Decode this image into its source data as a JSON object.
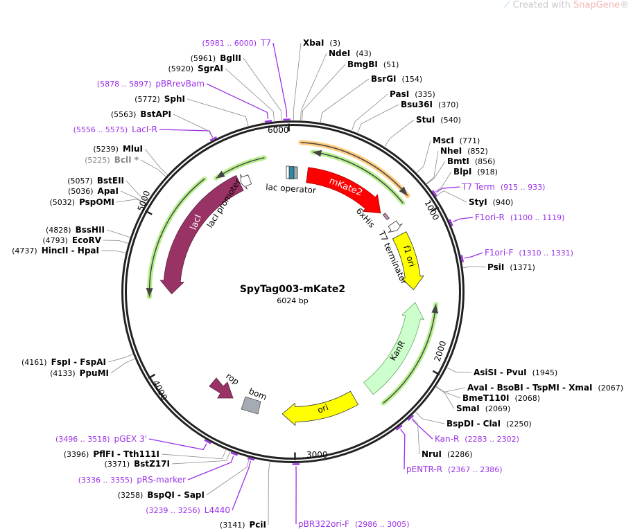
{
  "watermark": {
    "prefix": "Created with ",
    "brand": "SnapGene",
    "suffix": "®"
  },
  "plasmid": {
    "name": "SpyTag003-mKate2",
    "length_label": "6024 bp",
    "length_bp": 6024
  },
  "colors": {
    "enzyme": "#000000",
    "primer": "#9b30e8",
    "ring": "#222222",
    "nonunique": "#888888"
  },
  "ticks": [
    "1000",
    "2000",
    "3000",
    "4000",
    "5000",
    "6000"
  ],
  "features": {
    "mkate2": {
      "label": "mKate2",
      "color": "#ff0000"
    },
    "his": {
      "label": "6xHis",
      "color": "#c890b8"
    },
    "t7term": {
      "label": "T7 terminator",
      "color": "#ffffff"
    },
    "f1ori": {
      "label": "f1 ori",
      "color": "#ffff00"
    },
    "kanr": {
      "label": "KanR",
      "color": "#ccffcc"
    },
    "ori": {
      "label": "ori",
      "color": "#ffff00"
    },
    "rop": {
      "label": "rop",
      "color": "#993366"
    },
    "bom": {
      "label": "bom",
      "color": "#a6aab2"
    },
    "laci": {
      "label": "lacI",
      "color": "#993366"
    },
    "lacprom": {
      "label": "lacI promoter",
      "color": "#ffffff"
    },
    "lacop": {
      "label": "lac operator",
      "color": "#2b8aa6"
    }
  },
  "sites": [
    {
      "name": "XbaI",
      "pos": "(3)",
      "bp": 3,
      "kind": "enzyme",
      "side": "right"
    },
    {
      "name": "NdeI",
      "pos": "(43)",
      "bp": 43,
      "kind": "enzyme",
      "side": "right"
    },
    {
      "name": "BmgBI",
      "pos": "(51)",
      "bp": 51,
      "kind": "enzyme",
      "side": "right"
    },
    {
      "name": "BsrGI",
      "pos": "(154)",
      "bp": 154,
      "kind": "enzyme",
      "side": "right"
    },
    {
      "name": "PasI",
      "pos": "(335)",
      "bp": 335,
      "kind": "enzyme",
      "side": "right"
    },
    {
      "name": "Bsu36I",
      "pos": "(370)",
      "bp": 370,
      "kind": "enzyme",
      "side": "right"
    },
    {
      "name": "StuI",
      "pos": "(540)",
      "bp": 540,
      "kind": "enzyme",
      "side": "right"
    },
    {
      "name": "MscI",
      "pos": "(771)",
      "bp": 771,
      "kind": "enzyme",
      "side": "right"
    },
    {
      "name": "NheI",
      "pos": "(852)",
      "bp": 852,
      "kind": "enzyme",
      "side": "right"
    },
    {
      "name": "BmtI",
      "pos": "(856)",
      "bp": 856,
      "kind": "enzyme",
      "side": "right"
    },
    {
      "name": "BlpI",
      "pos": "(918)",
      "bp": 918,
      "kind": "enzyme",
      "side": "right"
    },
    {
      "name": "T7 Term",
      "pos": "(915 .. 933)",
      "bp": 924,
      "kind": "primer",
      "side": "right"
    },
    {
      "name": "StyI",
      "pos": "(940)",
      "bp": 940,
      "kind": "enzyme",
      "side": "right"
    },
    {
      "name": "F1ori-R",
      "pos": "(1100 .. 1119)",
      "bp": 1110,
      "kind": "primer",
      "side": "right"
    },
    {
      "name": "F1ori-F",
      "pos": "(1310 .. 1331)",
      "bp": 1320,
      "kind": "primer",
      "side": "right"
    },
    {
      "name": "PsiI",
      "pos": "(1371)",
      "bp": 1371,
      "kind": "enzyme",
      "side": "right"
    },
    {
      "name": "AsiSI - PvuI",
      "pos": "(1945)",
      "bp": 1945,
      "kind": "enzyme",
      "side": "right"
    },
    {
      "name": "AvaI - BsoBI - TspMI - XmaI",
      "pos": "(2067)",
      "bp": 2067,
      "kind": "enzyme",
      "side": "right"
    },
    {
      "name": "BmeT110I",
      "pos": "(2068)",
      "bp": 2068,
      "kind": "enzyme",
      "side": "right"
    },
    {
      "name": "SmaI",
      "pos": "(2069)",
      "bp": 2069,
      "kind": "enzyme",
      "side": "right"
    },
    {
      "name": "BspDI - ClaI",
      "pos": "(2250)",
      "bp": 2250,
      "kind": "enzyme",
      "side": "right"
    },
    {
      "name": "Kan-R",
      "pos": "(2283 .. 2302)",
      "bp": 2292,
      "kind": "primer",
      "side": "right"
    },
    {
      "name": "NruI",
      "pos": "(2286)",
      "bp": 2286,
      "kind": "enzyme",
      "side": "right"
    },
    {
      "name": "pENTR-R",
      "pos": "(2367 .. 2386)",
      "bp": 2376,
      "kind": "primer",
      "side": "right"
    },
    {
      "name": "pBR322ori-F",
      "pos": "(2986 .. 3005)",
      "bp": 2995,
      "kind": "primer",
      "side": "right"
    },
    {
      "name": "PciI",
      "pos": "(3141)",
      "bp": 3141,
      "kind": "enzyme",
      "side": "left"
    },
    {
      "name": "L4440",
      "pos": "(3239 .. 3256)",
      "bp": 3247,
      "kind": "primer",
      "side": "left"
    },
    {
      "name": "BspQI - SapI",
      "pos": "(3258)",
      "bp": 3258,
      "kind": "enzyme",
      "side": "left"
    },
    {
      "name": "pRS-marker",
      "pos": "(3336 .. 3355)",
      "bp": 3345,
      "kind": "primer",
      "side": "left"
    },
    {
      "name": "BstZ17I",
      "pos": "(3371)",
      "bp": 3371,
      "kind": "enzyme",
      "side": "left"
    },
    {
      "name": "PflFI - Tth111I",
      "pos": "(3396)",
      "bp": 3396,
      "kind": "enzyme",
      "side": "left"
    },
    {
      "name": "pGEX 3'",
      "pos": "(3496 .. 3518)",
      "bp": 3507,
      "kind": "primer",
      "side": "left"
    },
    {
      "name": "PpuMI",
      "pos": "(4133)",
      "bp": 4133,
      "kind": "enzyme",
      "side": "left"
    },
    {
      "name": "FspI - FspAI",
      "pos": "(4161)",
      "bp": 4161,
      "kind": "enzyme",
      "side": "left"
    },
    {
      "name": "HincII - HpaI",
      "pos": "(4737)",
      "bp": 4737,
      "kind": "enzyme",
      "side": "left"
    },
    {
      "name": "EcoRV",
      "pos": "(4793)",
      "bp": 4793,
      "kind": "enzyme",
      "side": "left"
    },
    {
      "name": "BssHII",
      "pos": "(4828)",
      "bp": 4828,
      "kind": "enzyme",
      "side": "left"
    },
    {
      "name": "PspOMI",
      "pos": "(5032)",
      "bp": 5032,
      "kind": "enzyme",
      "side": "left"
    },
    {
      "name": "ApaI",
      "pos": "(5036)",
      "bp": 5036,
      "kind": "enzyme",
      "side": "left"
    },
    {
      "name": "BstEII",
      "pos": "(5057)",
      "bp": 5057,
      "kind": "enzyme",
      "side": "left"
    },
    {
      "name": "BclI *",
      "pos": "(5225)",
      "bp": 5225,
      "kind": "nonunique",
      "side": "left"
    },
    {
      "name": "MluI",
      "pos": "(5239)",
      "bp": 5239,
      "kind": "enzyme",
      "side": "left"
    },
    {
      "name": "LacI-R",
      "pos": "(5556 .. 5575)",
      "bp": 5565,
      "kind": "primer",
      "side": "left"
    },
    {
      "name": "BstAPI",
      "pos": "(5563)",
      "bp": 5563,
      "kind": "enzyme",
      "side": "left"
    },
    {
      "name": "SphI",
      "pos": "(5772)",
      "bp": 5772,
      "kind": "enzyme",
      "side": "left"
    },
    {
      "name": "pBRrevBam",
      "pos": "(5878 .. 5897)",
      "bp": 5887,
      "kind": "primer",
      "side": "left"
    },
    {
      "name": "SgrAI",
      "pos": "(5920)",
      "bp": 5920,
      "kind": "enzyme",
      "side": "left"
    },
    {
      "name": "BglII",
      "pos": "(5961)",
      "bp": 5961,
      "kind": "enzyme",
      "side": "left"
    },
    {
      "name": "T7",
      "pos": "(5981 .. 6000)",
      "bp": 5990,
      "kind": "primer",
      "side": "left"
    }
  ]
}
